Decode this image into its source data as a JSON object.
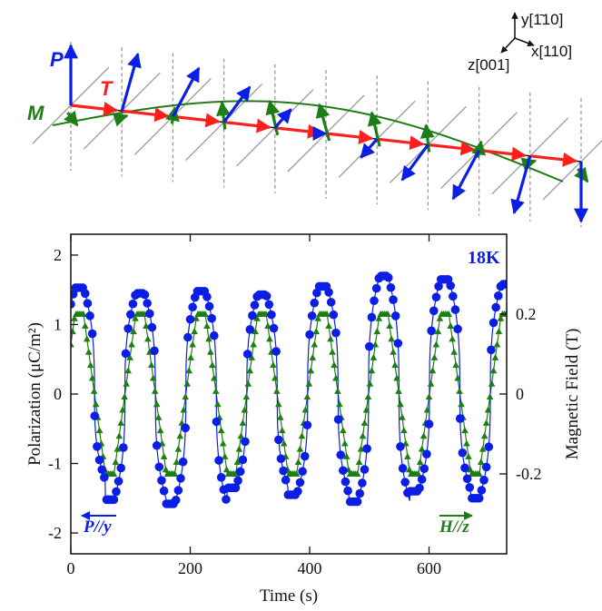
{
  "diagram": {
    "P_label": "P",
    "T_label": "T",
    "M_label": "M",
    "axis_y": "y[1̄10]",
    "axis_x": "x[110]",
    "axis_z": "z[001]",
    "colors": {
      "P": "#0a1ee6",
      "T": "#ff1e1e",
      "M": "#1e7d14",
      "grid": "#9a9a9a"
    }
  },
  "chart_data": {
    "type": "line",
    "annotation_temp": "18K",
    "xlabel": "Time (s)",
    "ylabel_left": "Polarization (μC/m²)",
    "ylabel_right": "Magnetic Field (T)",
    "xlim": [
      0,
      730
    ],
    "ylim_left": [
      -2.3,
      2.3
    ],
    "ylim_right": [
      -0.4,
      0.4
    ],
    "x_ticks": [
      "0",
      "200",
      "400",
      "600"
    ],
    "x_tick_values": [
      0,
      200,
      400,
      600
    ],
    "left_ticks": [
      "-2",
      "-1",
      "0",
      "1",
      "2"
    ],
    "left_tick_values": [
      -2,
      -1,
      0,
      1,
      2
    ],
    "right_ticks": [
      "-0.2",
      "0",
      "0.2"
    ],
    "right_tick_values": [
      -0.2,
      0,
      0.2
    ],
    "period_s": 102,
    "phase_s": 7,
    "series": [
      {
        "name": "P//y",
        "axis": "left",
        "color": "#0a1ee6",
        "marker": "circle",
        "peaks": [
          1.53,
          1.45,
          1.48,
          1.43,
          1.55,
          1.7,
          1.65,
          1.58,
          1.42
        ],
        "troughs": [
          -1.25,
          -1.52,
          -1.58,
          -1.35,
          -1.45,
          -1.55,
          -1.4,
          -1.5,
          -1.42
        ]
      },
      {
        "name": "H//z",
        "axis": "right",
        "color": "#1e7d14",
        "marker": "triangle",
        "amplitude_T": 0.2
      }
    ]
  }
}
